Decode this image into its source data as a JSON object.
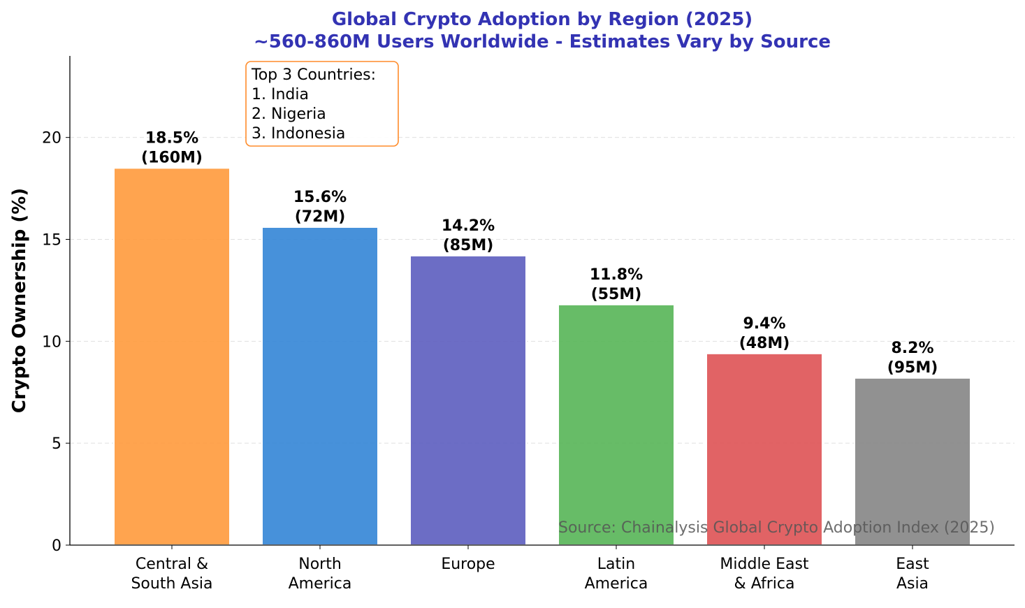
{
  "chart_data": {
    "type": "bar",
    "title": "Global Crypto Adoption by Region (2025)",
    "subtitle": "~560-860M Users Worldwide - Estimates Vary by Source",
    "xlabel": "",
    "ylabel": "Crypto Ownership (%)",
    "ylim": [
      0,
      24
    ],
    "yticks": [
      "0",
      "5",
      "10",
      "15",
      "20"
    ],
    "grid": "horizontal dashed",
    "categories": [
      "Central &\nSouth Asia",
      "North\nAmerica",
      "Europe",
      "Latin\nAmerica",
      "Middle East\n& Africa",
      "East\nAsia"
    ],
    "values": [
      18.5,
      15.6,
      14.2,
      11.8,
      9.4,
      8.2
    ],
    "users": [
      "160M",
      "72M",
      "85M",
      "55M",
      "48M",
      "95M"
    ],
    "data_labels": [
      "18.5%\n(160M)",
      "15.6%\n(72M)",
      "14.2%\n(85M)",
      "11.8%\n(55M)",
      "9.4%\n(48M)",
      "8.2%\n(95M)"
    ],
    "colors": [
      "#FF9A3C",
      "#3385D6",
      "#5C5DBF",
      "#57B557",
      "#DE5254",
      "#858585"
    ],
    "annotation_box": {
      "title": "Top 3 Countries:",
      "items": [
        "1. India",
        "2. Nigeria",
        "3. Indonesia"
      ],
      "border_color": "#FF8C2A",
      "placement": "top-left"
    },
    "source": "Source: Chainalysis Global Crypto Adoption Index (2025)",
    "title_color": "#3333B3"
  }
}
